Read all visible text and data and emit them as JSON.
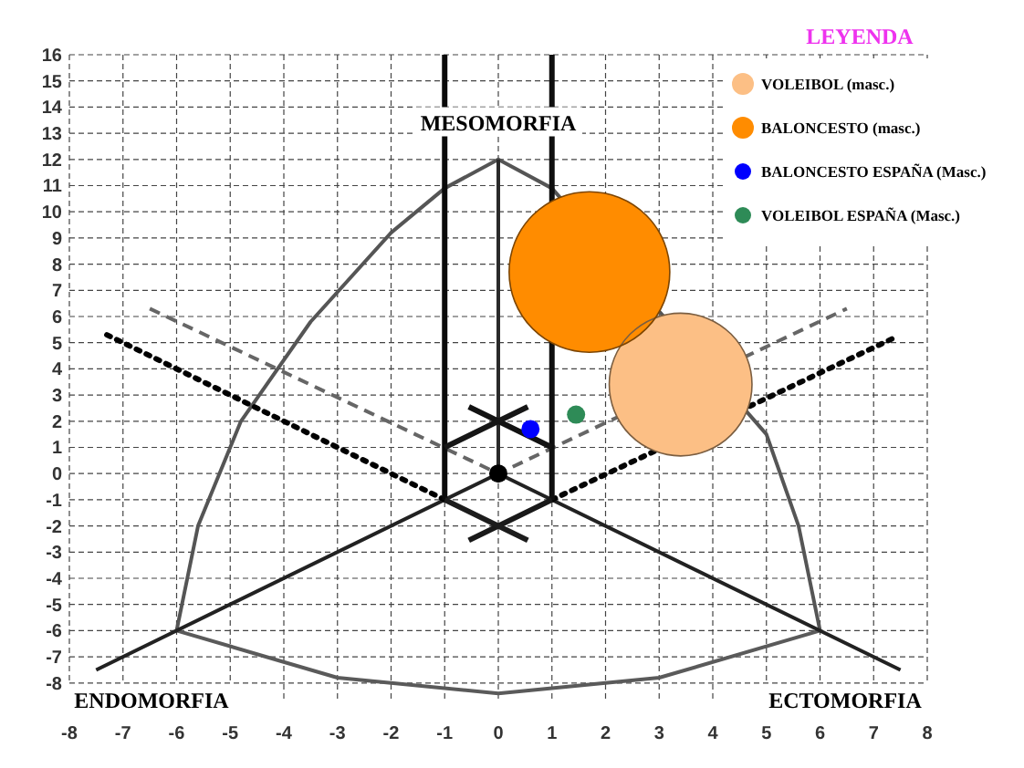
{
  "chart_data": {
    "type": "bubble",
    "legend_title": "LEYENDA",
    "legend": "top right",
    "grid": true,
    "xlim": [
      -8,
      8
    ],
    "xticks": [
      -8,
      -7,
      -6,
      -5,
      -4,
      -3,
      -2,
      -1,
      0,
      1,
      2,
      3,
      4,
      5,
      6,
      7,
      8
    ],
    "ylim": [
      -8.6,
      16
    ],
    "yticks": [
      -8,
      -7,
      -6,
      -5,
      -4,
      -3,
      -2,
      -1,
      0,
      1,
      2,
      3,
      4,
      5,
      6,
      7,
      8,
      9,
      10,
      11,
      12,
      13,
      14,
      15,
      16
    ],
    "annotations": [
      "MESOMORFIA",
      "ENDOMORFIA",
      "ECTOMORFIA"
    ],
    "series": [
      {
        "type": "line",
        "color": "#555555",
        "line_style": "solid",
        "x": [
          -6,
          -5.6,
          -4.8,
          -3.5,
          -2,
          -1,
          0,
          1,
          5,
          5.6,
          6
        ],
        "values": [
          -6,
          -2,
          2,
          5.8,
          9.2,
          10.9,
          12,
          10.9,
          1.5,
          -2,
          -6
        ]
      },
      {
        "type": "line",
        "color": "#5a5a5a",
        "line_style": "solid",
        "x": [
          -6,
          -3,
          0,
          3,
          6
        ],
        "values": [
          -6,
          -7.8,
          -8.4,
          -7.8,
          -6
        ]
      },
      {
        "type": "line",
        "color": "#222222",
        "line_style": "solid",
        "x": [
          -7.5,
          0,
          7.5
        ],
        "values": [
          -7.5,
          0,
          -7.5
        ]
      },
      {
        "type": "line",
        "color": "#2a2a2a",
        "line_style": "solid",
        "x": [
          0,
          0
        ],
        "values": [
          0,
          12
        ]
      },
      {
        "type": "line",
        "color": "#666666",
        "line_style": "dashed",
        "x": [
          -6.5,
          0,
          6.5
        ],
        "values": [
          6.3,
          0,
          6.3
        ]
      },
      {
        "type": "line",
        "color": "#000000",
        "line_style": "dotted",
        "x": [
          -7.3,
          -1
        ],
        "values": [
          5.3,
          -1
        ]
      },
      {
        "type": "line",
        "color": "#050505",
        "line_style": "dotted",
        "x": [
          1,
          7.4
        ],
        "values": [
          -1,
          5.2
        ]
      },
      {
        "type": "line",
        "color": "#0a0a0a",
        "line_style": "solid",
        "x": [
          -1,
          -1
        ],
        "values": [
          -1,
          16
        ]
      },
      {
        "type": "line",
        "color": "#0f0f0f",
        "line_style": "solid",
        "x": [
          1,
          1
        ],
        "values": [
          -1,
          16
        ]
      },
      {
        "type": "line",
        "color": "#121212",
        "line_style": "solid",
        "x": [
          -0.55,
          0,
          1
        ],
        "values": [
          2.55,
          2,
          1
        ]
      },
      {
        "type": "line",
        "color": "#161616",
        "line_style": "solid",
        "x": [
          -1,
          0,
          0.55
        ],
        "values": [
          1,
          2,
          2.55
        ]
      },
      {
        "type": "line",
        "color": "#191919",
        "line_style": "solid",
        "x": [
          -0.55,
          0,
          1
        ],
        "values": [
          -2.55,
          -2,
          -1
        ]
      },
      {
        "type": "line",
        "color": "#1c1c1c",
        "line_style": "solid",
        "x": [
          -1,
          0,
          0.55
        ],
        "values": [
          -1,
          -2,
          -2.55
        ]
      },
      {
        "type": "scatter",
        "marker": "circle",
        "color": "#000000",
        "x": [
          0
        ],
        "values": [
          0
        ]
      },
      {
        "name": "VOLEIBOL (masc.)",
        "marker": "circle",
        "color": "#fcbf85",
        "x": [
          3.4
        ],
        "values": [
          3.4
        ],
        "sizes": [
          0.79
        ]
      },
      {
        "name": "BALONCESTO (masc.)",
        "marker": "circle",
        "color": "#ff8c00",
        "x": [
          1.7
        ],
        "values": [
          7.7
        ],
        "sizes": [
          1
        ]
      },
      {
        "type": "scatter",
        "marker": "circle",
        "name": "BALONCESTO ESPAÑA (Masc.)",
        "color": "#0000ff",
        "x": [
          0.6
        ],
        "values": [
          1.7
        ]
      },
      {
        "type": "scatter",
        "marker": "circle",
        "name": "VOLEIBOL ESPAÑA (Masc.)",
        "color": "#2e8b57",
        "x": [
          1.45
        ],
        "values": [
          2.25
        ]
      }
    ]
  }
}
